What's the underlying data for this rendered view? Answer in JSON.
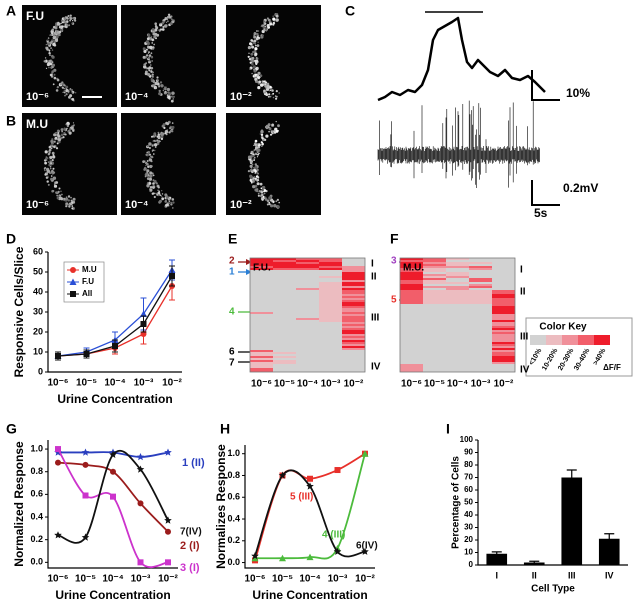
{
  "panels": [
    "A",
    "B",
    "C",
    "D",
    "E",
    "F",
    "G",
    "H",
    "I"
  ],
  "images": {
    "rows": [
      {
        "label": "F.U",
        "concentrations": [
          "10⁻⁶",
          "10⁻⁴",
          "10⁻²"
        ]
      },
      {
        "label": "M.U",
        "concentrations": [
          "10⁻⁶",
          "10⁻⁴",
          "10⁻²"
        ]
      }
    ]
  },
  "trace": {
    "dff_scale": "10%",
    "voltage_scale": "0.2mV",
    "time_scale": "5s"
  },
  "heatmaps": [
    {
      "label": "F.U.",
      "concentrations": [
        "10⁻⁶",
        "10⁻⁵",
        "10⁻⁴",
        "10⁻³",
        "10⁻²"
      ],
      "groups": [
        "I",
        "II",
        "III",
        "IV"
      ],
      "cells": [
        "2",
        "1",
        "4",
        "6",
        "7"
      ]
    },
    {
      "label": "M.U.",
      "concentrations": [
        "10⁻⁶",
        "10⁻⁵",
        "10⁻⁴",
        "10⁻³",
        "10⁻²"
      ],
      "groups": [
        "I",
        "II",
        "III",
        "IV"
      ],
      "cells": [
        "3",
        "5"
      ]
    }
  ],
  "color_key": {
    "title": "Color Key",
    "levels": [
      "<10%",
      "10-20%",
      "20-30%",
      "30-40%",
      ">40%"
    ],
    "colors": [
      "#d2d2d2",
      "#ecbcc0",
      "#f0909a",
      "#f25e6a",
      "#ee1c2b"
    ],
    "unit": "ΔF/F"
  },
  "chart_data": [
    {
      "type": "line",
      "y_label": "Responsive Cells/Slice",
      "x_label": "Urine Concentration",
      "categories": [
        "10⁻⁶",
        "10⁻⁵",
        "10⁻⁴",
        "10⁻³",
        "10⁻²"
      ],
      "ylim": [
        0,
        60
      ],
      "yticks": [
        0,
        10,
        20,
        30,
        40,
        50,
        60
      ],
      "legend": "top-left",
      "series": [
        {
          "name": "M.U",
          "color": "#e8302a",
          "marker": "circle",
          "values": [
            8,
            9,
            12,
            19,
            43
          ],
          "errors": [
            2,
            2,
            3,
            5,
            7
          ]
        },
        {
          "name": "F.U",
          "color": "#2a4fd6",
          "marker": "triangle",
          "values": [
            8,
            10,
            16,
            29,
            51
          ],
          "errors": [
            2,
            2,
            4,
            8,
            5
          ]
        },
        {
          "name": "All",
          "color": "#111111",
          "marker": "square",
          "values": [
            8,
            9,
            13,
            24,
            48
          ],
          "errors": [
            2,
            2,
            3,
            4,
            5
          ]
        }
      ]
    },
    {
      "type": "line",
      "smooth": true,
      "y_label": "Normalized Response",
      "x_label": "Urine Concentration",
      "categories": [
        "10⁻⁶",
        "10⁻⁵",
        "10⁻⁴",
        "10⁻³",
        "10⁻²"
      ],
      "ylim": [
        -0.05,
        1.08
      ],
      "yticks": [
        {
          "value": 0,
          "label": "0.0"
        },
        {
          "value": 0.2,
          "label": "0.2"
        },
        {
          "value": 0.4,
          "label": "0.4"
        },
        {
          "value": 0.6,
          "label": "0.6"
        },
        {
          "value": 0.8,
          "label": "0.8"
        },
        {
          "value": 1,
          "label": "1.0"
        }
      ],
      "series": [
        {
          "label": "1 (II)",
          "color": "#2a3fbf",
          "marker": "star",
          "values": [
            0.97,
            0.97,
            0.97,
            0.93,
            0.97
          ]
        },
        {
          "label": "2 (I)",
          "color": "#9b1c1c",
          "marker": "circle",
          "values": [
            0.88,
            0.86,
            0.8,
            0.52,
            0.27
          ]
        },
        {
          "label": "3 (I)",
          "color": "#cc33cc",
          "marker": "square",
          "values": [
            1.0,
            0.59,
            0.58,
            0.0,
            0.0
          ]
        },
        {
          "label": "7(IV)",
          "color": "#111111",
          "marker": "star",
          "values": [
            0.24,
            0.22,
            0.95,
            0.82,
            0.37
          ]
        }
      ]
    },
    {
      "type": "line",
      "smooth": true,
      "y_label": "Normalizes Response",
      "x_label": "Urine Concentration",
      "categories": [
        "10⁻⁶",
        "10⁻⁵",
        "10⁻⁴",
        "10⁻³",
        "10⁻²"
      ],
      "ylim": [
        -0.05,
        1.08
      ],
      "yticks": [
        {
          "value": 0,
          "label": "0.0"
        },
        {
          "value": 0.2,
          "label": "0.2"
        },
        {
          "value": 0.4,
          "label": "0.4"
        },
        {
          "value": 0.6,
          "label": "0.6"
        },
        {
          "value": 0.8,
          "label": "0.8"
        },
        {
          "value": 1,
          "label": "1.0"
        }
      ],
      "series": [
        {
          "label": "5 (III)",
          "color": "#e8302a",
          "marker": "square",
          "values": [
            0.02,
            0.8,
            0.77,
            0.85,
            1.0
          ]
        },
        {
          "label": "4 (III)",
          "color": "#4cbb3c",
          "marker": "triangle",
          "values": [
            0.04,
            0.04,
            0.05,
            0.13,
            1.0
          ]
        },
        {
          "label": "6(IV)",
          "color": "#111111",
          "marker": "star",
          "values": [
            0.06,
            0.8,
            0.7,
            0.1,
            0.1
          ]
        }
      ]
    },
    {
      "type": "bar",
      "y_label": "Percentage of Cells",
      "x_label": "Cell Type",
      "categories": [
        "I",
        "II",
        "III",
        "IV"
      ],
      "values": [
        9,
        2,
        70,
        21
      ],
      "errors": [
        1.5,
        1,
        6,
        4
      ],
      "color": "#000000",
      "ylim": [
        0,
        100
      ],
      "yticks": [
        0,
        10,
        20,
        30,
        40,
        50,
        60,
        70,
        80,
        90,
        100
      ]
    }
  ]
}
